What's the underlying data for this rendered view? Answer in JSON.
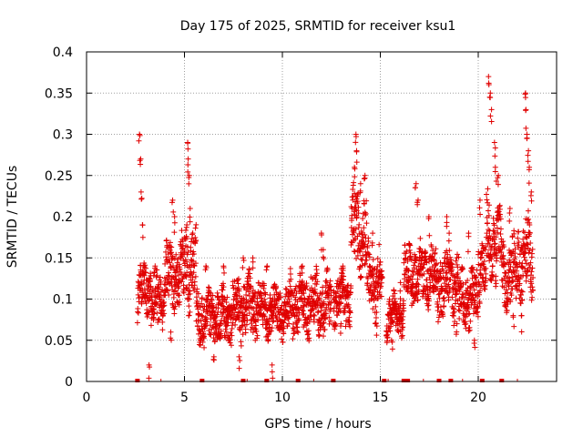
{
  "chart_data": {
    "type": "scatter",
    "title": "Day 175 of 2025, SRMTID for receiver ksu1",
    "xlabel": "GPS time / hours",
    "ylabel": "SRMTID / TECUs",
    "xlim": [
      0,
      24
    ],
    "ylim": [
      0,
      0.4
    ],
    "grid": true,
    "marker": "+",
    "color": "#e00000",
    "xticks": [
      0,
      5,
      10,
      15,
      20
    ],
    "xtick_labels": [
      "0",
      "5",
      "10",
      "15",
      "20"
    ],
    "yticks": [
      0,
      0.05,
      0.1,
      0.15,
      0.2,
      0.25,
      0.3,
      0.35,
      0.4
    ],
    "ytick_labels": [
      "0",
      "0.05",
      "0.1",
      "0.15",
      "0.2",
      "0.25",
      "0.3",
      "0.35",
      "0.4"
    ],
    "segments": [
      {
        "t0": 2.6,
        "t1": 3.3,
        "base": 0.11,
        "amp": 0.03,
        "peaks": [
          [
            2.7,
            0.3
          ],
          [
            2.75,
            0.27
          ],
          [
            2.8,
            0.23
          ],
          [
            2.85,
            0.19
          ]
        ]
      },
      {
        "t0": 3.3,
        "t1": 4.0,
        "base": 0.1,
        "amp": 0.035,
        "peaks": [
          [
            3.5,
            0.14
          ],
          [
            3.2,
            0.02
          ]
        ]
      },
      {
        "t0": 4.0,
        "t1": 5.0,
        "base": 0.13,
        "amp": 0.04,
        "peaks": [
          [
            4.4,
            0.22
          ],
          [
            4.5,
            0.2
          ],
          [
            4.3,
            0.06
          ]
        ]
      },
      {
        "t0": 5.0,
        "t1": 5.6,
        "base": 0.14,
        "amp": 0.045,
        "peaks": [
          [
            5.15,
            0.29
          ],
          [
            5.2,
            0.27
          ],
          [
            5.25,
            0.25
          ],
          [
            5.3,
            0.21
          ],
          [
            5.1,
            0.19
          ]
        ]
      },
      {
        "t0": 5.6,
        "t1": 7.5,
        "base": 0.08,
        "amp": 0.035,
        "peaks": [
          [
            6.1,
            0.14
          ],
          [
            7.0,
            0.14
          ],
          [
            6.5,
            0.03
          ]
        ]
      },
      {
        "t0": 7.5,
        "t1": 9.0,
        "base": 0.09,
        "amp": 0.035,
        "peaks": [
          [
            8.0,
            0.15
          ],
          [
            8.5,
            0.15
          ],
          [
            7.8,
            0.03
          ]
        ]
      },
      {
        "t0": 9.0,
        "t1": 10.4,
        "base": 0.085,
        "amp": 0.03,
        "peaks": [
          [
            9.5,
            0.02
          ],
          [
            9.2,
            0.14
          ]
        ]
      },
      {
        "t0": 10.4,
        "t1": 12.5,
        "base": 0.095,
        "amp": 0.035,
        "peaks": [
          [
            12.0,
            0.18
          ],
          [
            12.1,
            0.16
          ],
          [
            11.0,
            0.14
          ]
        ]
      },
      {
        "t0": 12.6,
        "t1": 13.5,
        "base": 0.1,
        "amp": 0.03,
        "peaks": [
          [
            13.1,
            0.14
          ],
          [
            13.0,
            0.07
          ]
        ]
      },
      {
        "t0": 13.5,
        "t1": 14.3,
        "base": 0.18,
        "amp": 0.05,
        "peaks": [
          [
            13.75,
            0.3
          ],
          [
            13.8,
            0.28
          ],
          [
            13.7,
            0.26
          ],
          [
            14.2,
            0.25
          ],
          [
            14.0,
            0.24
          ]
        ]
      },
      {
        "t0": 14.3,
        "t1": 15.1,
        "base": 0.12,
        "amp": 0.04,
        "peaks": [
          [
            14.6,
            0.18
          ],
          [
            14.8,
            0.07
          ]
        ]
      },
      {
        "t0": 15.3,
        "t1": 16.2,
        "base": 0.08,
        "amp": 0.025,
        "peaks": [
          [
            15.6,
            0.05
          ],
          [
            16.0,
            0.12
          ]
        ]
      },
      {
        "t0": 16.2,
        "t1": 17.8,
        "base": 0.13,
        "amp": 0.035,
        "peaks": [
          [
            16.8,
            0.24
          ],
          [
            16.9,
            0.22
          ],
          [
            17.5,
            0.2
          ]
        ]
      },
      {
        "t0": 17.8,
        "t1": 19.0,
        "base": 0.12,
        "amp": 0.04,
        "peaks": [
          [
            18.4,
            0.2
          ],
          [
            18.5,
            0.18
          ],
          [
            18.9,
            0.07
          ]
        ]
      },
      {
        "t0": 19.0,
        "t1": 20.0,
        "base": 0.1,
        "amp": 0.035,
        "peaks": [
          [
            19.5,
            0.18
          ],
          [
            19.8,
            0.05
          ]
        ]
      },
      {
        "t0": 20.0,
        "t1": 20.4,
        "base": 0.14,
        "amp": 0.035,
        "peaks": [
          [
            20.1,
            0.22
          ]
        ]
      },
      {
        "t0": 20.4,
        "t1": 21.2,
        "base": 0.17,
        "amp": 0.05,
        "peaks": [
          [
            20.55,
            0.37
          ],
          [
            20.6,
            0.35
          ],
          [
            20.65,
            0.33
          ],
          [
            20.85,
            0.29
          ],
          [
            20.9,
            0.26
          ],
          [
            21.0,
            0.25
          ]
        ]
      },
      {
        "t0": 21.2,
        "t1": 22.0,
        "base": 0.13,
        "amp": 0.04,
        "peaks": [
          [
            21.6,
            0.21
          ],
          [
            21.8,
            0.08
          ]
        ]
      },
      {
        "t0": 22.0,
        "t1": 22.8,
        "base": 0.15,
        "amp": 0.05,
        "peaks": [
          [
            22.4,
            0.35
          ],
          [
            22.45,
            0.33
          ],
          [
            22.5,
            0.3
          ],
          [
            22.55,
            0.28
          ],
          [
            22.6,
            0.26
          ],
          [
            22.7,
            0.23
          ],
          [
            22.2,
            0.08
          ]
        ]
      }
    ],
    "baseline_markers": [
      2.6,
      3.8,
      5.9,
      8.0,
      8.2,
      9.2,
      10.8,
      11.6,
      12.6,
      15.2,
      15.4,
      16.2,
      16.4,
      17.2,
      18.0,
      18.6,
      19.2,
      20.2,
      21.2,
      22.0
    ]
  }
}
